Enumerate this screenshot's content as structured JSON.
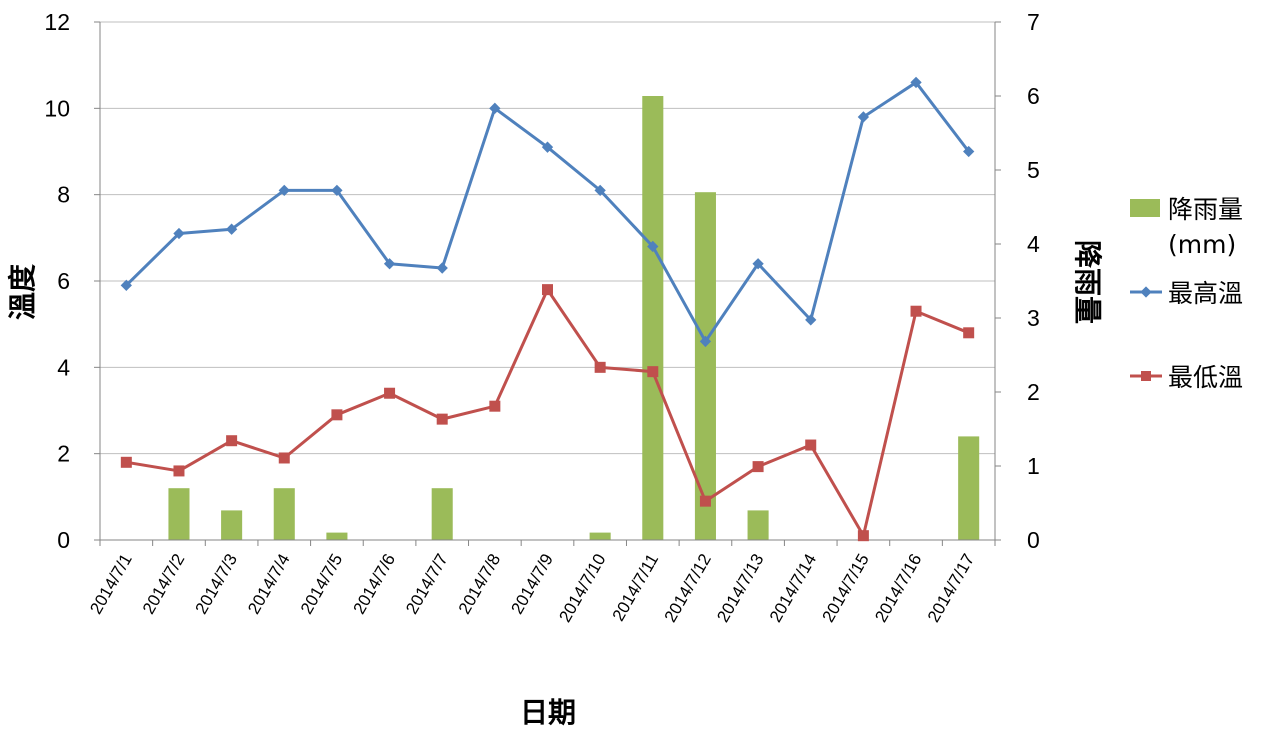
{
  "chart_data": {
    "type": "bar+line",
    "categories": [
      "2014/7/1",
      "2014/7/2",
      "2014/7/3",
      "2014/7/4",
      "2014/7/5",
      "2014/7/6",
      "2014/7/7",
      "2014/7/8",
      "2014/7/9",
      "2014/7/10",
      "2014/7/11",
      "2014/7/12",
      "2014/7/13",
      "2014/7/14",
      "2014/7/15",
      "2014/7/16",
      "2014/7/17"
    ],
    "xlabel": "日期",
    "ylabel_left": "溫度",
    "ylabel_right": "降雨量",
    "ylim_left": [
      0,
      12
    ],
    "yticks_left": [
      0,
      2,
      4,
      6,
      8,
      10,
      12
    ],
    "ylim_right": [
      0,
      7
    ],
    "yticks_right": [
      0,
      1,
      2,
      3,
      4,
      5,
      6,
      7
    ],
    "grid": "horizontal",
    "legend_position": "right",
    "series": [
      {
        "name": "降雨量",
        "name_line2": "(mm)",
        "kind": "bar",
        "axis": "right",
        "color": "#9BBB59",
        "values": [
          0,
          0.7,
          0.4,
          0.7,
          0.1,
          0,
          0.7,
          0,
          0,
          0.1,
          6.0,
          4.7,
          0.4,
          0,
          0,
          0,
          1.4
        ]
      },
      {
        "name": "最高溫",
        "kind": "line",
        "axis": "left",
        "marker": "diamond",
        "color": "#4F81BD",
        "values": [
          5.9,
          7.1,
          7.2,
          8.1,
          8.1,
          6.4,
          6.3,
          10.0,
          9.1,
          8.1,
          6.8,
          4.6,
          6.4,
          5.1,
          9.8,
          10.6,
          9.0
        ]
      },
      {
        "name": "最低溫",
        "kind": "line",
        "axis": "left",
        "marker": "square",
        "color": "#C0504D",
        "values": [
          1.8,
          1.6,
          2.3,
          1.9,
          2.9,
          3.4,
          2.8,
          3.1,
          5.8,
          4.0,
          3.9,
          0.9,
          1.7,
          2.2,
          0.1,
          5.3,
          4.8
        ]
      }
    ]
  }
}
